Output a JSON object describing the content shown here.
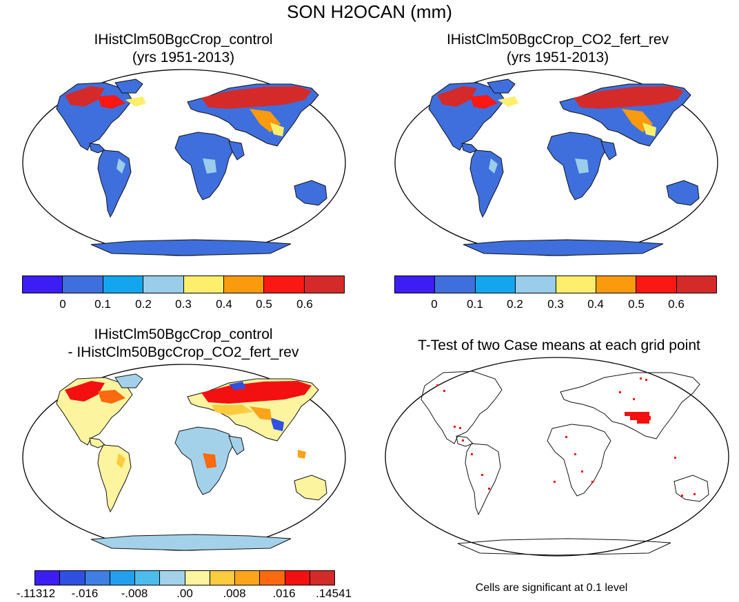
{
  "figure": {
    "title": "SON H2OCAN (mm)",
    "panels": [
      {
        "id": "control",
        "title_line1": "IHistClm50BgcCrop_control",
        "title_line2": "(yrs 1951-2013)"
      },
      {
        "id": "co2",
        "title_line1": "IHistClm50BgcCrop_CO2_fert_rev",
        "title_line2": "(yrs 1951-2013)"
      },
      {
        "id": "diff",
        "title_line1": "IHistClm50BgcCrop_control",
        "title_line2": "- IHistClm50BgcCrop_CO2_fert_rev"
      },
      {
        "id": "ttest",
        "title_line1": "T-Test of two Case means at each grid point",
        "title_line2": ""
      }
    ],
    "colorbar_abs": {
      "colors": [
        "#3c1ef5",
        "#3f6fdc",
        "#13a6ef",
        "#99cdea",
        "#fdef6b",
        "#fa9a0d",
        "#fb1812",
        "#d52a2a"
      ],
      "labels": [
        "0",
        "0.1",
        "0.2",
        "0.3",
        "0.4",
        "0.5",
        "0.6"
      ]
    },
    "colorbar_diff": {
      "colors": [
        "#3c1ef5",
        "#2f50e0",
        "#3f7ee2",
        "#22a0ef",
        "#4cbcec",
        "#a4d1ea",
        "#fdf4a0",
        "#fdcb3e",
        "#fda41a",
        "#fb6a0e",
        "#f31010",
        "#d32a2a"
      ],
      "labels": [
        "-.11312",
        "-.016",
        "-.008",
        ".00",
        ".008",
        ".016",
        ".14541"
      ]
    },
    "significance_note": "Cells are significant at 0.1 level"
  }
}
